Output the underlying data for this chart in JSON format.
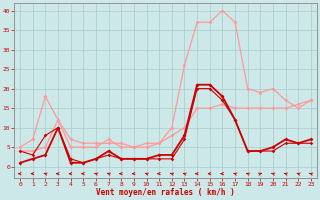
{
  "x": [
    0,
    1,
    2,
    3,
    4,
    5,
    6,
    7,
    8,
    9,
    10,
    11,
    12,
    13,
    14,
    15,
    16,
    17,
    18,
    19,
    20,
    21,
    22,
    23
  ],
  "rafales": [
    4,
    4,
    5,
    12,
    5,
    5,
    5,
    7,
    5,
    5,
    5,
    6,
    10,
    26,
    37,
    37,
    40,
    37,
    20,
    19,
    20,
    17,
    15,
    17
  ],
  "moyen": [
    1,
    2,
    3,
    10,
    1,
    1,
    2,
    4,
    2,
    2,
    2,
    3,
    3,
    8,
    21,
    21,
    18,
    12,
    4,
    4,
    5,
    7,
    6,
    7
  ],
  "line3": [
    5,
    7,
    18,
    12,
    7,
    6,
    6,
    6,
    6,
    5,
    6,
    6,
    8,
    10,
    15,
    15,
    16,
    15,
    15,
    15,
    15,
    15,
    16,
    17
  ],
  "line4": [
    4,
    3,
    8,
    10,
    2,
    1,
    2,
    3,
    2,
    2,
    2,
    2,
    2,
    7,
    20,
    20,
    17,
    12,
    4,
    4,
    4,
    6,
    6,
    6
  ],
  "bg_color": "#cce8e8",
  "grid_color": "#aacccc",
  "col_dark": "#cc0000",
  "col_light": "#ff9999",
  "xlabel": "Vent moyen/en rafales ( km/h )",
  "ylim": [
    -3,
    42
  ],
  "xlim": [
    -0.5,
    23.5
  ],
  "yticks": [
    0,
    5,
    10,
    15,
    20,
    25,
    30,
    35,
    40
  ],
  "xticks": [
    0,
    1,
    2,
    3,
    4,
    5,
    6,
    7,
    8,
    9,
    10,
    11,
    12,
    13,
    14,
    15,
    16,
    17,
    18,
    19,
    20,
    21,
    22,
    23
  ],
  "arrow_dirs": [
    270,
    270,
    315,
    270,
    270,
    270,
    315,
    315,
    270,
    270,
    315,
    270,
    315,
    315,
    270,
    270,
    270,
    315,
    315,
    45,
    315,
    315,
    315,
    315
  ]
}
